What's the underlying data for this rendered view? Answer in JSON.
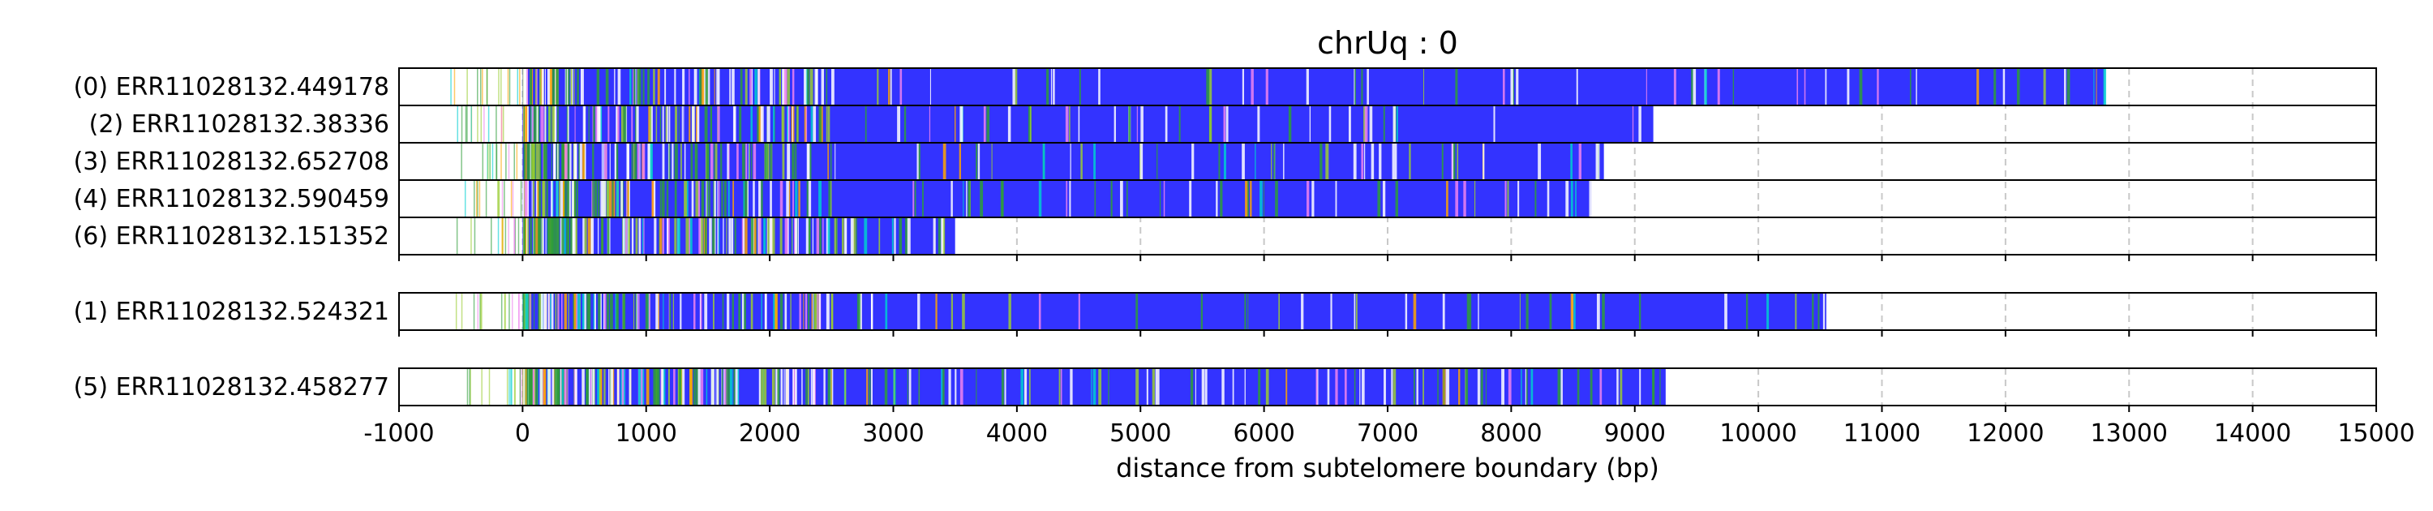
{
  "chart_data": {
    "type": "bar",
    "title": "chrUq : 0",
    "xlabel": "distance from subtelomere boundary (bp)",
    "ylabel": "",
    "xlim": [
      -1000,
      15000
    ],
    "xticks": [
      -1000,
      0,
      1000,
      2000,
      3000,
      4000,
      5000,
      6000,
      7000,
      8000,
      9000,
      10000,
      11000,
      12000,
      13000,
      14000,
      15000
    ],
    "xtick_labels": [
      "-1000",
      "0",
      "1000",
      "2000",
      "3000",
      "4000",
      "5000",
      "6000",
      "7000",
      "8000",
      "9000",
      "10000",
      "11000",
      "12000",
      "13000",
      "14000",
      "15000"
    ],
    "grid": "vertical dashed",
    "colors": {
      "repeat": "#3333ff",
      "variant_green": "#2e9e3a",
      "variant_lightgreen": "#9acd32",
      "variant_pink": "#ee82ee",
      "variant_orange": "#ffa500",
      "variant_cyan": "#00ced1",
      "gap": "#ffffff",
      "grid": "#c8c8c8",
      "frame": "#000000"
    },
    "groups": [
      {
        "reads": [
          {
            "label": "(0) ERR11028132.449178",
            "start": -600,
            "tvr_end": 0,
            "end": 12800
          },
          {
            "label": "(2) ERR11028132.38336",
            "start": -580,
            "tvr_end": 0,
            "end": 9150
          },
          {
            "label": "(3) ERR11028132.652708",
            "start": -520,
            "tvr_end": 0,
            "end": 8750
          },
          {
            "label": "(4) ERR11028132.590459",
            "start": -490,
            "tvr_end": 0,
            "end": 8650
          },
          {
            "label": "(6) ERR11028132.151352",
            "start": -600,
            "tvr_end": 0,
            "end": 3500
          }
        ]
      },
      {
        "reads": [
          {
            "label": "(1) ERR11028132.524321",
            "start": -550,
            "tvr_end": 0,
            "end": 10550
          }
        ]
      },
      {
        "reads": [
          {
            "label": "(5) ERR11028132.458277",
            "start": -480,
            "tvr_end": 0,
            "end": 9250
          }
        ]
      }
    ]
  }
}
